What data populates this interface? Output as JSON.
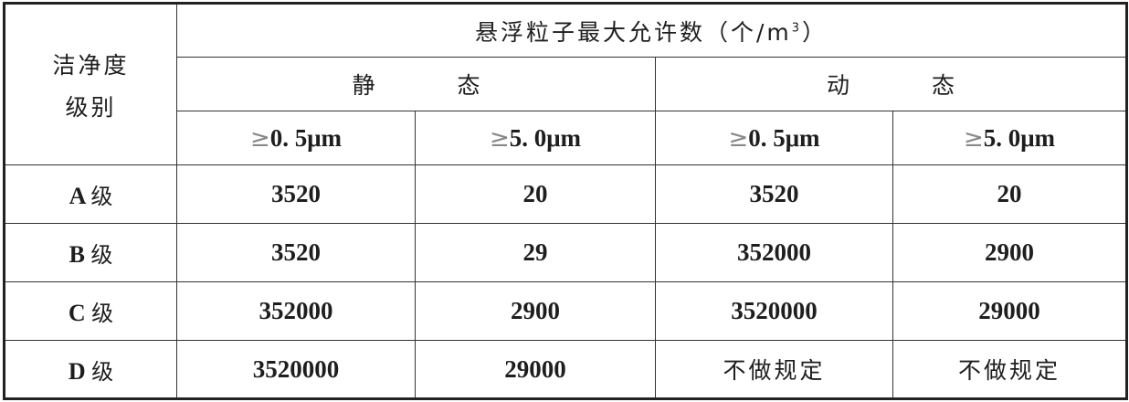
{
  "header": {
    "grade_label_line1": "洁净度",
    "grade_label_line2": "级别",
    "main_title": "悬浮粒子最大允许数（个/m",
    "main_title_sup": "3",
    "main_title_end": "）",
    "static_label": "静态",
    "dynamic_label": "动态",
    "ge_symbol": "≥",
    "sizes": [
      "0. 5μm",
      "5. 0μm",
      "0. 5μm",
      "5. 0μm"
    ]
  },
  "rows": [
    {
      "letter": "A",
      "grade": "级",
      "values": [
        "3520",
        "20",
        "3520",
        "20"
      ]
    },
    {
      "letter": "B",
      "grade": "级",
      "values": [
        "3520",
        "29",
        "352000",
        "2900"
      ]
    },
    {
      "letter": "C",
      "grade": "级",
      "values": [
        "352000",
        "2900",
        "3520000",
        "29000"
      ]
    },
    {
      "letter": "D",
      "grade": "级",
      "values": [
        "3520000",
        "29000",
        "不做规定",
        "不做规定"
      ]
    }
  ]
}
